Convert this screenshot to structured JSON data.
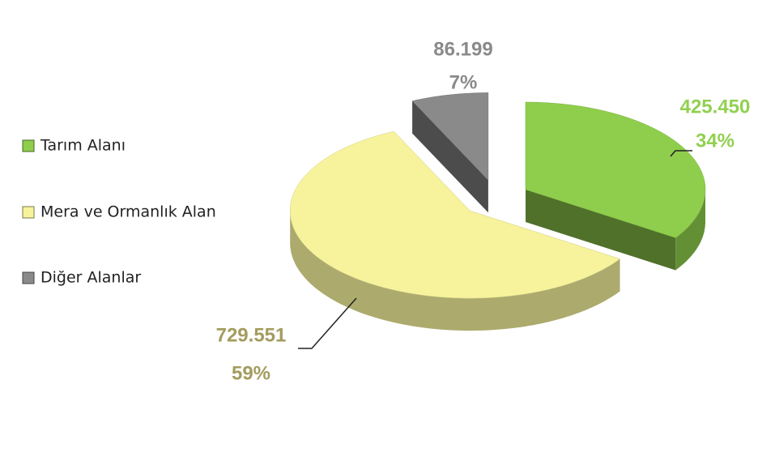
{
  "chart_data": {
    "type": "pie3d",
    "categories": [
      "Tarım Alanı",
      "Mera ve Ormanlık Alan",
      "Diğer Alanlar"
    ],
    "values": [
      425450,
      729551,
      86199
    ],
    "value_labels": [
      "425.450",
      "729.551",
      "86.199"
    ],
    "percentages": [
      {
        "value": 34,
        "label": "34%"
      },
      {
        "value": 59,
        "label": "59%"
      },
      {
        "value": 7,
        "label": "7%"
      }
    ],
    "colors": [
      "#8fce4c",
      "#f6f39c",
      "#8a8a8a"
    ],
    "label_colors": [
      "#92d050",
      "#a39c5e",
      "#8a8a8a"
    ],
    "legend": "left"
  }
}
